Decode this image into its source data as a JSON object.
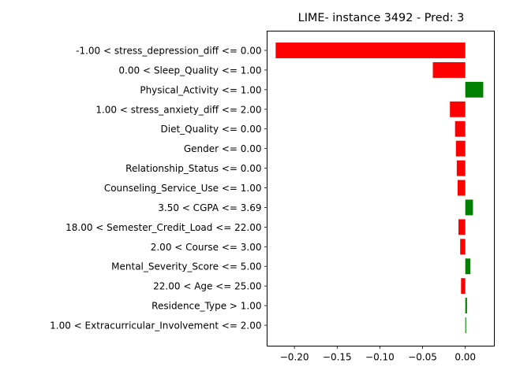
{
  "chart_data": {
    "type": "bar",
    "orientation": "horizontal",
    "title": "LIME- instance 3492 - Pred: 3",
    "xlabel": "",
    "ylabel": "",
    "categories": [
      "-1.00 < stress_depression_diff <= 0.00",
      "0.00 < Sleep_Quality <= 1.00",
      "Physical_Activity <= 1.00",
      "1.00 < stress_anxiety_diff <= 2.00",
      "Diet_Quality <= 0.00",
      "Gender <= 0.00",
      "Relationship_Status <= 0.00",
      "Counseling_Service_Use <= 1.00",
      "3.50 < CGPA <= 3.69",
      "18.00 < Semester_Credit_Load <= 22.00",
      "2.00 < Course <= 3.00",
      "Mental_Severity_Score <= 5.00",
      "22.00 < Age <= 25.00",
      "Residence_Type > 1.00",
      "1.00 < Extracurricular_Involvement <= 2.00"
    ],
    "values": [
      -0.222,
      -0.038,
      0.021,
      -0.018,
      -0.012,
      -0.011,
      -0.01,
      -0.009,
      0.009,
      -0.008,
      -0.006,
      0.006,
      -0.005,
      0.002,
      0.001
    ],
    "xlim": [
      -0.232,
      0.034
    ],
    "xticks": [
      -0.2,
      -0.15,
      -0.1,
      -0.05,
      0.0
    ],
    "xtick_labels": [
      "−0.20",
      "−0.15",
      "−0.10",
      "−0.05",
      "0.00"
    ],
    "grid": false,
    "legend": "none",
    "colors": {
      "positive": "#008000",
      "negative": "#ff0000",
      "axes": "#000000",
      "background": "#ffffff"
    }
  }
}
